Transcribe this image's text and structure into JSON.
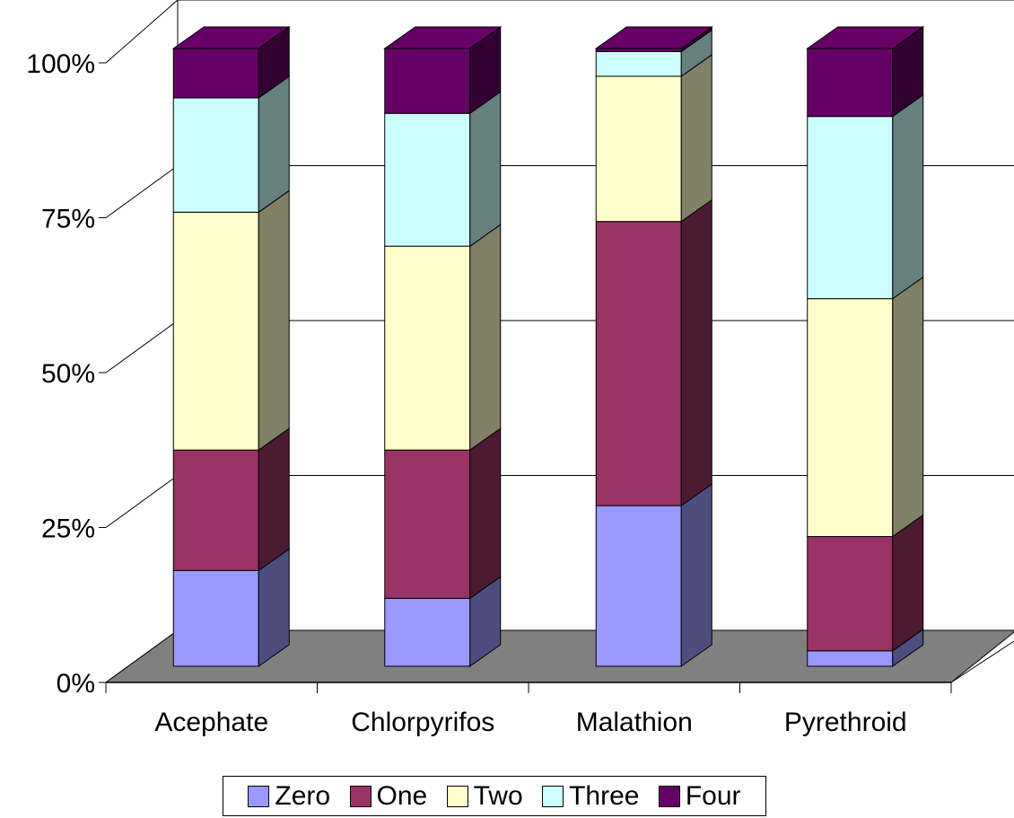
{
  "chart_data": {
    "type": "bar",
    "stacked": true,
    "percent_stacked": true,
    "three_d": true,
    "categories": [
      "Acephate",
      "Chlorpyrifos",
      "Malathion",
      "Pyrethroid"
    ],
    "series": [
      {
        "name": "Zero",
        "color": "#9999FF",
        "values": [
          15.5,
          11.0,
          26.0,
          2.5
        ]
      },
      {
        "name": "One",
        "color": "#993366",
        "values": [
          19.5,
          24.0,
          46.0,
          18.5
        ]
      },
      {
        "name": "Two",
        "color": "#FFFFCC",
        "values": [
          38.5,
          33.0,
          23.5,
          38.5
        ]
      },
      {
        "name": "Three",
        "color": "#CCFFFF",
        "values": [
          18.5,
          21.5,
          4.0,
          29.5
        ]
      },
      {
        "name": "Four",
        "color": "#660066",
        "values": [
          8.0,
          10.5,
          0.5,
          11.0
        ]
      }
    ],
    "y_ticks": [
      "0%",
      "25%",
      "50%",
      "75%",
      "100%"
    ],
    "ylim": [
      0,
      100
    ],
    "grid": true,
    "legend_position": "bottom",
    "floor_color": "#808080"
  }
}
